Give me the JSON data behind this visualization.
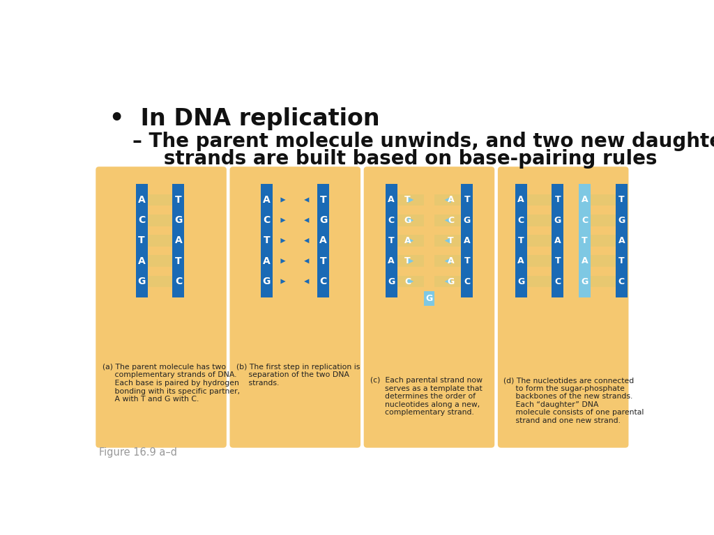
{
  "bg_color": "#ffffff",
  "panel_bg": "#f5c870",
  "blue_dark": "#1a6ab5",
  "blue_light": "#7ec8e3",
  "tan": "#e8c870",
  "figure_label": "Figure 16.9 a–d",
  "bullet": "•  In DNA replication",
  "sub1": "– The parent molecule unwinds, and two new daughter",
  "sub2": "   strands are built based on base-pairing rules",
  "bases_left": [
    "A",
    "C",
    "T",
    "A",
    "G"
  ],
  "bases_right": [
    "T",
    "G",
    "A",
    "T",
    "C"
  ],
  "caption_a": "(a) The parent molecule has two\n     complementary strands of DNA.\n     Each base is paired by hydrogen\n     bonding with its specific partner,\n     A with T and G with C.",
  "caption_b": "(b) The first step in replication is\n     separation of the two DNA\n     strands.",
  "caption_c": "(c)  Each parental strand now\n      serves as a template that\n      determines the order of\n      nucleotides along a new,\n      complementary strand.",
  "caption_d": "(d) The nucleotides are connected\n     to form the sugar-phosphate\n     backbones of the new strands.\n     Each “daughter” DNA\n     molecule consists of one parental\n     strand and one new strand."
}
